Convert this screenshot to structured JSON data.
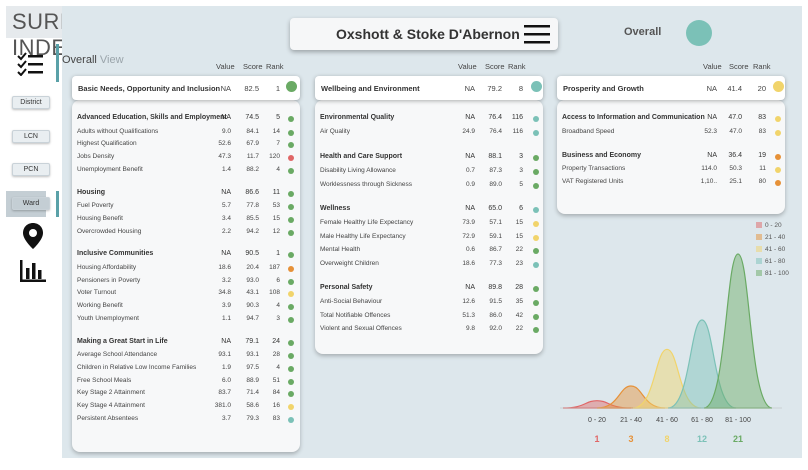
{
  "app_title": "SURREY INDEX",
  "area_name": "Oxshott & Stoke D'Abernon",
  "overall": {
    "label": "Overall",
    "color": "#7bc1b7"
  },
  "view": {
    "title_a": "Overall",
    "title_b": "View"
  },
  "nav": {
    "district": "District",
    "lcn": "LCN",
    "pcn": "PCN",
    "ward": "Ward"
  },
  "icons": [
    "checklist-icon",
    "map-pin-icon",
    "bar-chart-icon",
    "hamburger-menu-icon"
  ],
  "columns": {
    "value": "Value",
    "score": "Score",
    "rank": "Rank"
  },
  "rank_colors": {
    "0-20": "#e06666",
    "21-40": "#e69138",
    "41-60": "#f1d46b",
    "61-80": "#7bc1b7",
    "81-100": "#6aaa64"
  },
  "panels": [
    {
      "header": {
        "label": "Basic Needs, Opportunity and Inclusion",
        "value": "NA",
        "score": "82.5",
        "rank": "1",
        "color": "#6aaa64"
      },
      "groups": [
        {
          "label": "Advanced Education, Skills and Employment",
          "value": "NA",
          "score": "74.5",
          "rank": "5",
          "color": "#6aaa64",
          "rows": [
            {
              "label": "Adults without Qualifications",
              "value": "9.0",
              "score": "84.1",
              "rank": "14",
              "color": "#6aaa64"
            },
            {
              "label": "Highest Qualification",
              "value": "52.6",
              "score": "67.9",
              "rank": "7",
              "color": "#6aaa64"
            },
            {
              "label": "Jobs Density",
              "value": "47.3",
              "score": "11.7",
              "rank": "120",
              "color": "#e06666"
            },
            {
              "label": "Unemployment Benefit",
              "value": "1.4",
              "score": "88.2",
              "rank": "4",
              "color": "#6aaa64"
            }
          ]
        },
        {
          "label": "Housing",
          "value": "NA",
          "score": "86.6",
          "rank": "11",
          "color": "#6aaa64",
          "rows": [
            {
              "label": "Fuel Poverty",
              "value": "5.7",
              "score": "77.8",
              "rank": "53",
              "color": "#6aaa64"
            },
            {
              "label": "Housing Benefit",
              "value": "3.4",
              "score": "85.5",
              "rank": "15",
              "color": "#6aaa64"
            },
            {
              "label": "Overcrowded Housing",
              "value": "2.2",
              "score": "94.2",
              "rank": "12",
              "color": "#6aaa64"
            }
          ]
        },
        {
          "label": "Inclusive Communities",
          "value": "NA",
          "score": "90.5",
          "rank": "1",
          "color": "#6aaa64",
          "rows": [
            {
              "label": "Housing Affordability",
              "value": "18.6",
              "score": "20.4",
              "rank": "187",
              "color": "#e69138"
            },
            {
              "label": "Pensioners in Poverty",
              "value": "3.2",
              "score": "93.0",
              "rank": "6",
              "color": "#6aaa64"
            },
            {
              "label": "Voter Turnout",
              "value": "34.8",
              "score": "43.1",
              "rank": "108",
              "color": "#f1d46b"
            },
            {
              "label": "Working Benefit",
              "value": "3.9",
              "score": "90.3",
              "rank": "4",
              "color": "#6aaa64"
            },
            {
              "label": "Youth Unemployment",
              "value": "1.1",
              "score": "94.7",
              "rank": "3",
              "color": "#6aaa64"
            }
          ]
        },
        {
          "label": "Making a Great Start in Life",
          "value": "NA",
          "score": "79.1",
          "rank": "24",
          "color": "#6aaa64",
          "rows": [
            {
              "label": "Average School Attendance",
              "value": "93.1",
              "score": "93.1",
              "rank": "28",
              "color": "#6aaa64"
            },
            {
              "label": "Children in Relative Low Income Families",
              "value": "1.9",
              "score": "97.5",
              "rank": "4",
              "color": "#6aaa64"
            },
            {
              "label": "Free School Meals",
              "value": "6.0",
              "score": "88.9",
              "rank": "51",
              "color": "#6aaa64"
            },
            {
              "label": "Key Stage 2 Attainment",
              "value": "83.7",
              "score": "71.4",
              "rank": "84",
              "color": "#6aaa64"
            },
            {
              "label": "Key Stage 4 Attainment",
              "value": "381.0",
              "score": "58.6",
              "rank": "16",
              "color": "#f1d46b"
            },
            {
              "label": "Persistent Absentees",
              "value": "3.7",
              "score": "79.3",
              "rank": "83",
              "color": "#7bc1b7"
            }
          ]
        }
      ]
    },
    {
      "header": {
        "label": "Wellbeing and Environment",
        "value": "NA",
        "score": "79.2",
        "rank": "8",
        "color": "#7bc1b7"
      },
      "groups": [
        {
          "label": "Environmental Quality",
          "value": "NA",
          "score": "76.4",
          "rank": "116",
          "color": "#7bc1b7",
          "rows": [
            {
              "label": "Air Quality",
              "value": "24.9",
              "score": "76.4",
              "rank": "116",
              "color": "#7bc1b7"
            }
          ]
        },
        {
          "label": "Health and Care Support",
          "value": "NA",
          "score": "88.1",
          "rank": "3",
          "color": "#6aaa64",
          "rows": [
            {
              "label": "Disability Living Allowance",
              "value": "0.7",
              "score": "87.3",
              "rank": "3",
              "color": "#6aaa64"
            },
            {
              "label": "Worklessness through Sickness",
              "value": "0.9",
              "score": "89.0",
              "rank": "5",
              "color": "#6aaa64"
            }
          ]
        },
        {
          "label": "Wellness",
          "value": "NA",
          "score": "65.0",
          "rank": "6",
          "color": "#7bc1b7",
          "rows": [
            {
              "label": "Female Healthy Life Expectancy",
              "value": "73.9",
              "score": "57.1",
              "rank": "15",
              "color": "#f1d46b"
            },
            {
              "label": "Male Healthy Life Expectancy",
              "value": "72.9",
              "score": "59.1",
              "rank": "15",
              "color": "#f1d46b"
            },
            {
              "label": "Mental Health",
              "value": "0.6",
              "score": "86.7",
              "rank": "22",
              "color": "#6aaa64"
            },
            {
              "label": "Overweight Children",
              "value": "18.6",
              "score": "77.3",
              "rank": "23",
              "color": "#7bc1b7"
            }
          ]
        },
        {
          "label": "Personal Safety",
          "value": "NA",
          "score": "89.8",
          "rank": "28",
          "color": "#6aaa64",
          "rows": [
            {
              "label": "Anti-Social Behaviour",
              "value": "12.6",
              "score": "91.5",
              "rank": "35",
              "color": "#6aaa64"
            },
            {
              "label": "Total Notifiable Offences",
              "value": "51.3",
              "score": "86.0",
              "rank": "42",
              "color": "#6aaa64"
            },
            {
              "label": "Violent and Sexual Offences",
              "value": "9.8",
              "score": "92.0",
              "rank": "22",
              "color": "#6aaa64"
            }
          ]
        }
      ]
    },
    {
      "header": {
        "label": "Prosperity and Growth",
        "value": "NA",
        "score": "41.4",
        "rank": "20",
        "color": "#f1d46b"
      },
      "groups": [
        {
          "label": "Access to Information and Communication",
          "value": "NA",
          "score": "47.0",
          "rank": "83",
          "color": "#f1d46b",
          "rows": [
            {
              "label": "Broadband Speed",
              "value": "52.3",
              "score": "47.0",
              "rank": "83",
              "color": "#f1d46b"
            }
          ]
        },
        {
          "label": "Business and Economy",
          "value": "NA",
          "score": "36.4",
          "rank": "19",
          "color": "#e69138",
          "rows": [
            {
              "label": "Property Transactions",
              "value": "114.0",
              "score": "50.3",
              "rank": "11",
              "color": "#f1d46b"
            },
            {
              "label": "VAT Registered Units",
              "value": "1,10..",
              "score": "25.1",
              "rank": "80",
              "color": "#e69138"
            }
          ]
        }
      ]
    }
  ],
  "chart_data": {
    "type": "area",
    "categories": [
      "0 - 20",
      "21 - 40",
      "41 - 60",
      "61 - 80",
      "81 - 100"
    ],
    "values": [
      1,
      3,
      8,
      12,
      21
    ],
    "legend": [
      "0 - 20",
      "21 - 40",
      "41 - 60",
      "61 - 80",
      "81 - 100"
    ],
    "legend_position": "top-right",
    "colors": [
      "#e06666",
      "#e69138",
      "#f1d46b",
      "#7bc1b7",
      "#6aaa64"
    ],
    "xlabel": "",
    "ylabel": "",
    "grid": false
  }
}
